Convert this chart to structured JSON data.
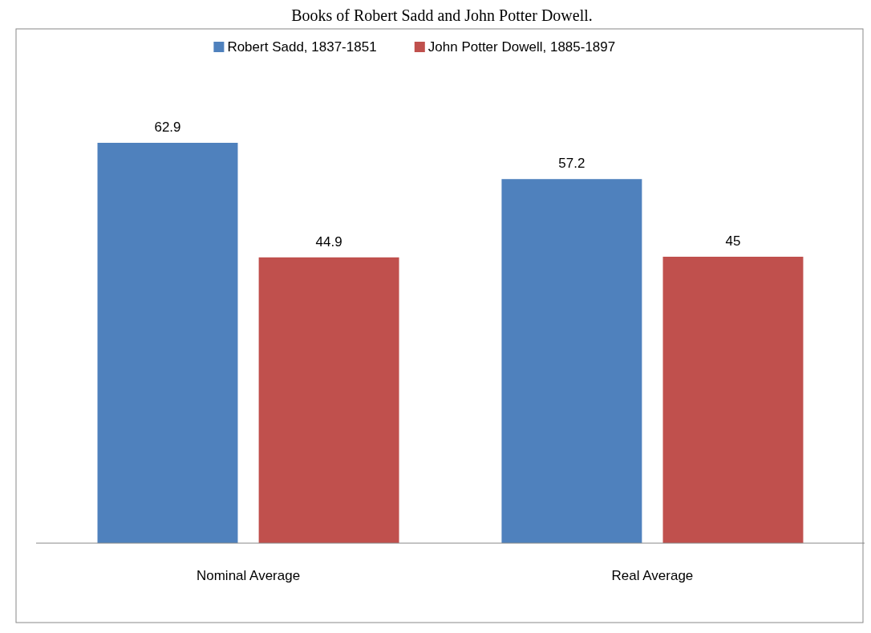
{
  "chart_data": {
    "type": "bar",
    "annotations": [
      "Books of Robert Sadd and John Potter Dowell."
    ],
    "categories": [
      "Nominal Average",
      "Real Average"
    ],
    "series": [
      {
        "name": "Robert Sadd, 1837-1851",
        "color": "#4f81bd",
        "values": [
          62.9,
          57.2
        ]
      },
      {
        "name": "John Potter Dowell, 1885-1897",
        "color": "#c0504d",
        "values": [
          44.9,
          45
        ]
      }
    ],
    "data_labels": true,
    "legend": "top"
  }
}
